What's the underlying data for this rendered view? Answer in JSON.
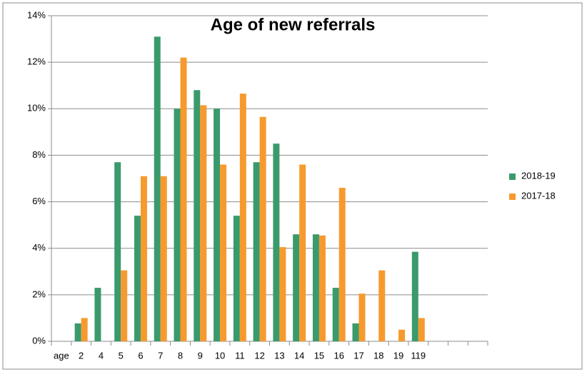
{
  "chart_data": {
    "type": "bar",
    "title": "Age of new referrals",
    "categories": [
      "age",
      "2",
      "4",
      "5",
      "6",
      "7",
      "8",
      "9",
      "10",
      "11",
      "12",
      "13",
      "14",
      "15",
      "16",
      "17",
      "18",
      "19",
      "119",
      null,
      null,
      null
    ],
    "series": [
      {
        "name": "2018-19",
        "color": "#3a9a6c",
        "values": [
          null,
          0.77,
          2.3,
          7.7,
          5.4,
          13.1,
          10.0,
          10.8,
          10.0,
          5.4,
          7.7,
          8.5,
          4.6,
          4.6,
          2.3,
          0.77,
          0,
          0,
          3.85,
          null,
          null,
          null
        ]
      },
      {
        "name": "2017-18",
        "color": "#f79a2e",
        "values": [
          null,
          1.0,
          0,
          3.05,
          7.1,
          7.1,
          12.2,
          10.15,
          7.6,
          10.65,
          9.65,
          4.05,
          7.6,
          4.55,
          6.6,
          2.05,
          3.05,
          0.5,
          1.0,
          null,
          null,
          null
        ]
      }
    ],
    "ylim": [
      0,
      14
    ],
    "yticks": [
      {
        "value": 0,
        "label": "0%"
      },
      {
        "value": 2,
        "label": "2%"
      },
      {
        "value": 4,
        "label": "4%"
      },
      {
        "value": 6,
        "label": "6%"
      },
      {
        "value": 8,
        "label": "8%"
      },
      {
        "value": 10,
        "label": "10%"
      },
      {
        "value": 12,
        "label": "12%"
      },
      {
        "value": 14,
        "label": "14%"
      }
    ],
    "grid": true,
    "legend": "right"
  }
}
